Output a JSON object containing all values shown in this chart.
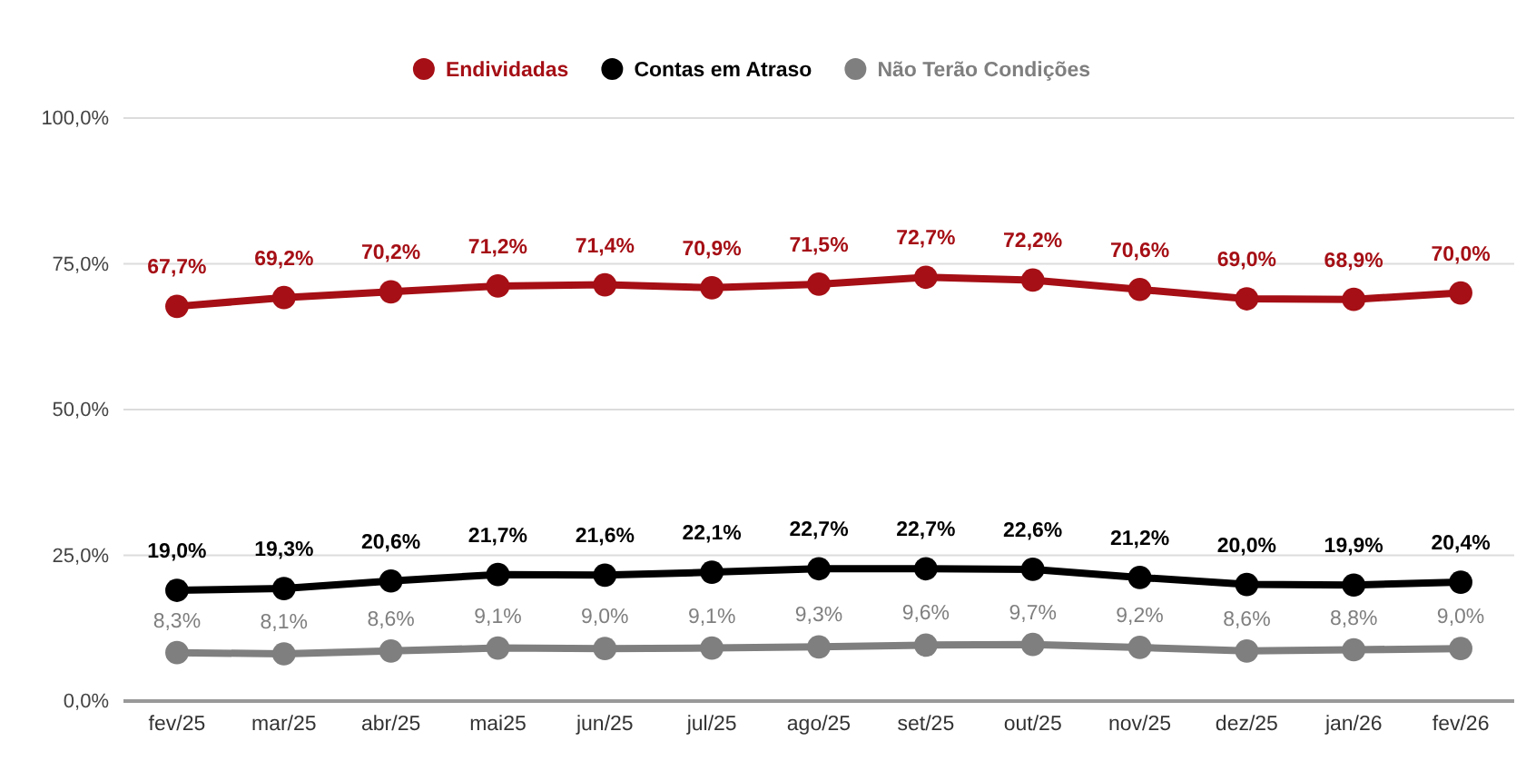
{
  "chart_data": {
    "type": "line",
    "categories": [
      "fev/25",
      "mar/25",
      "abr/25",
      "mai25",
      "jun/25",
      "jul/25",
      "ago/25",
      "set/25",
      "out/25",
      "nov/25",
      "dez/25",
      "jan/26",
      "fev/26"
    ],
    "series": [
      {
        "name": "Endividadas",
        "color": "#a50f15",
        "values": [
          67.7,
          69.2,
          70.2,
          71.2,
          71.4,
          70.9,
          71.5,
          72.7,
          72.2,
          70.6,
          69.0,
          68.9,
          70.0
        ],
        "value_labels": [
          "67,7%",
          "69,2%",
          "70,2%",
          "71,2%",
          "71,4%",
          "70,9%",
          "71,5%",
          "72,7%",
          "72,2%",
          "70,6%",
          "69,0%",
          "68,9%",
          "70,0%"
        ]
      },
      {
        "name": "Contas em Atraso",
        "color": "#000000",
        "values": [
          19.0,
          19.3,
          20.6,
          21.7,
          21.6,
          22.1,
          22.7,
          22.7,
          22.6,
          21.2,
          20.0,
          19.9,
          20.4
        ],
        "value_labels": [
          "19,0%",
          "19,3%",
          "20,6%",
          "21,7%",
          "21,6%",
          "22,1%",
          "22,7%",
          "22,7%",
          "22,6%",
          "21,2%",
          "20,0%",
          "19,9%",
          "20,4%"
        ]
      },
      {
        "name": "Não Terão Condições",
        "color": "#7f7f7f",
        "values": [
          8.3,
          8.1,
          8.6,
          9.1,
          9.0,
          9.1,
          9.3,
          9.6,
          9.7,
          9.2,
          8.6,
          8.8,
          9.0
        ],
        "value_labels": [
          "8,3%",
          "8,1%",
          "8,6%",
          "9,1%",
          "9,0%",
          "9,1%",
          "9,3%",
          "9,6%",
          "9,7%",
          "9,2%",
          "8,6%",
          "8,8%",
          "9,0%"
        ]
      }
    ],
    "ylim": [
      0,
      100
    ],
    "yticks": [
      {
        "value": 0,
        "label": "0,0%"
      },
      {
        "value": 25,
        "label": "25,0%"
      },
      {
        "value": 50,
        "label": "50,0%"
      },
      {
        "value": 75,
        "label": "75,0%"
      },
      {
        "value": 100,
        "label": "100,0%"
      }
    ],
    "grid": "y",
    "legend": "top",
    "marker": "circle",
    "line_style": "solid"
  }
}
